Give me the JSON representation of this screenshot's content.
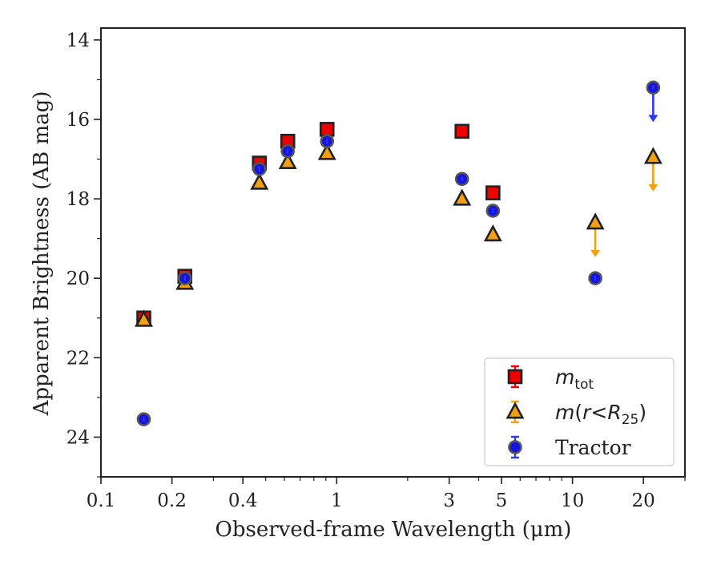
{
  "chart_data": {
    "type": "scatter",
    "title": "",
    "xlabel": "Observed-frame Wavelength (μm)",
    "ylabel": "Apparent Brightness (AB mag)",
    "xscale": "log",
    "yscale": "linear",
    "y_inverted": true,
    "xlim": [
      0.1,
      30
    ],
    "ylim": [
      25,
      13.7
    ],
    "x_ticks": [
      0.1,
      0.2,
      0.4,
      1,
      3,
      5,
      10,
      20
    ],
    "x_tick_labels": [
      "0.1",
      "0.2",
      "0.4",
      "1",
      "3",
      "5",
      "10",
      "20"
    ],
    "y_ticks": [
      14,
      16,
      18,
      20,
      22,
      24
    ],
    "y_tick_labels": [
      "14",
      "16",
      "18",
      "20",
      "22",
      "24"
    ],
    "grid": false,
    "legend_position": "lower-right",
    "series": [
      {
        "name": "m_tot",
        "legend": {
          "main": "m",
          "sub": "tot"
        },
        "marker": "square",
        "color": "#ee0000",
        "edge_color": "#222222",
        "error_color": "#ee0000",
        "x": [
          0.152,
          0.227,
          0.47,
          0.62,
          0.91,
          3.4,
          4.6
        ],
        "y": [
          21.0,
          19.95,
          17.1,
          16.55,
          16.25,
          16.3,
          17.85
        ],
        "upper_limit": [
          false,
          false,
          false,
          false,
          false,
          false,
          false
        ]
      },
      {
        "name": "m(r<R_25)",
        "legend": {
          "main": "m",
          "open": "(",
          "r": "r",
          "op": "<",
          "R": "R",
          "sub": "25",
          "close": ")"
        },
        "marker": "triangle",
        "color": "#f5a010",
        "edge_color": "#222222",
        "error_color": "#f5a010",
        "x": [
          0.152,
          0.227,
          0.47,
          0.62,
          0.91,
          3.4,
          4.6,
          12.5,
          22.0
        ],
        "y": [
          21.05,
          20.12,
          17.6,
          17.08,
          16.85,
          18.0,
          18.9,
          18.6,
          16.95
        ],
        "upper_limit": [
          false,
          false,
          false,
          false,
          false,
          false,
          false,
          true,
          true
        ]
      },
      {
        "name": "Tractor",
        "legend": {
          "main": "Tractor"
        },
        "marker": "circle",
        "color": "#1515dd",
        "edge_color": "#555555",
        "error_color": "#2a3aee",
        "x": [
          0.152,
          0.227,
          0.47,
          0.62,
          0.91,
          3.4,
          4.6,
          12.5,
          22.0
        ],
        "y": [
          23.55,
          20.0,
          17.25,
          16.8,
          16.55,
          17.5,
          18.3,
          20.0,
          15.2
        ],
        "upper_limit": [
          false,
          false,
          false,
          false,
          false,
          false,
          false,
          false,
          true
        ]
      }
    ]
  }
}
